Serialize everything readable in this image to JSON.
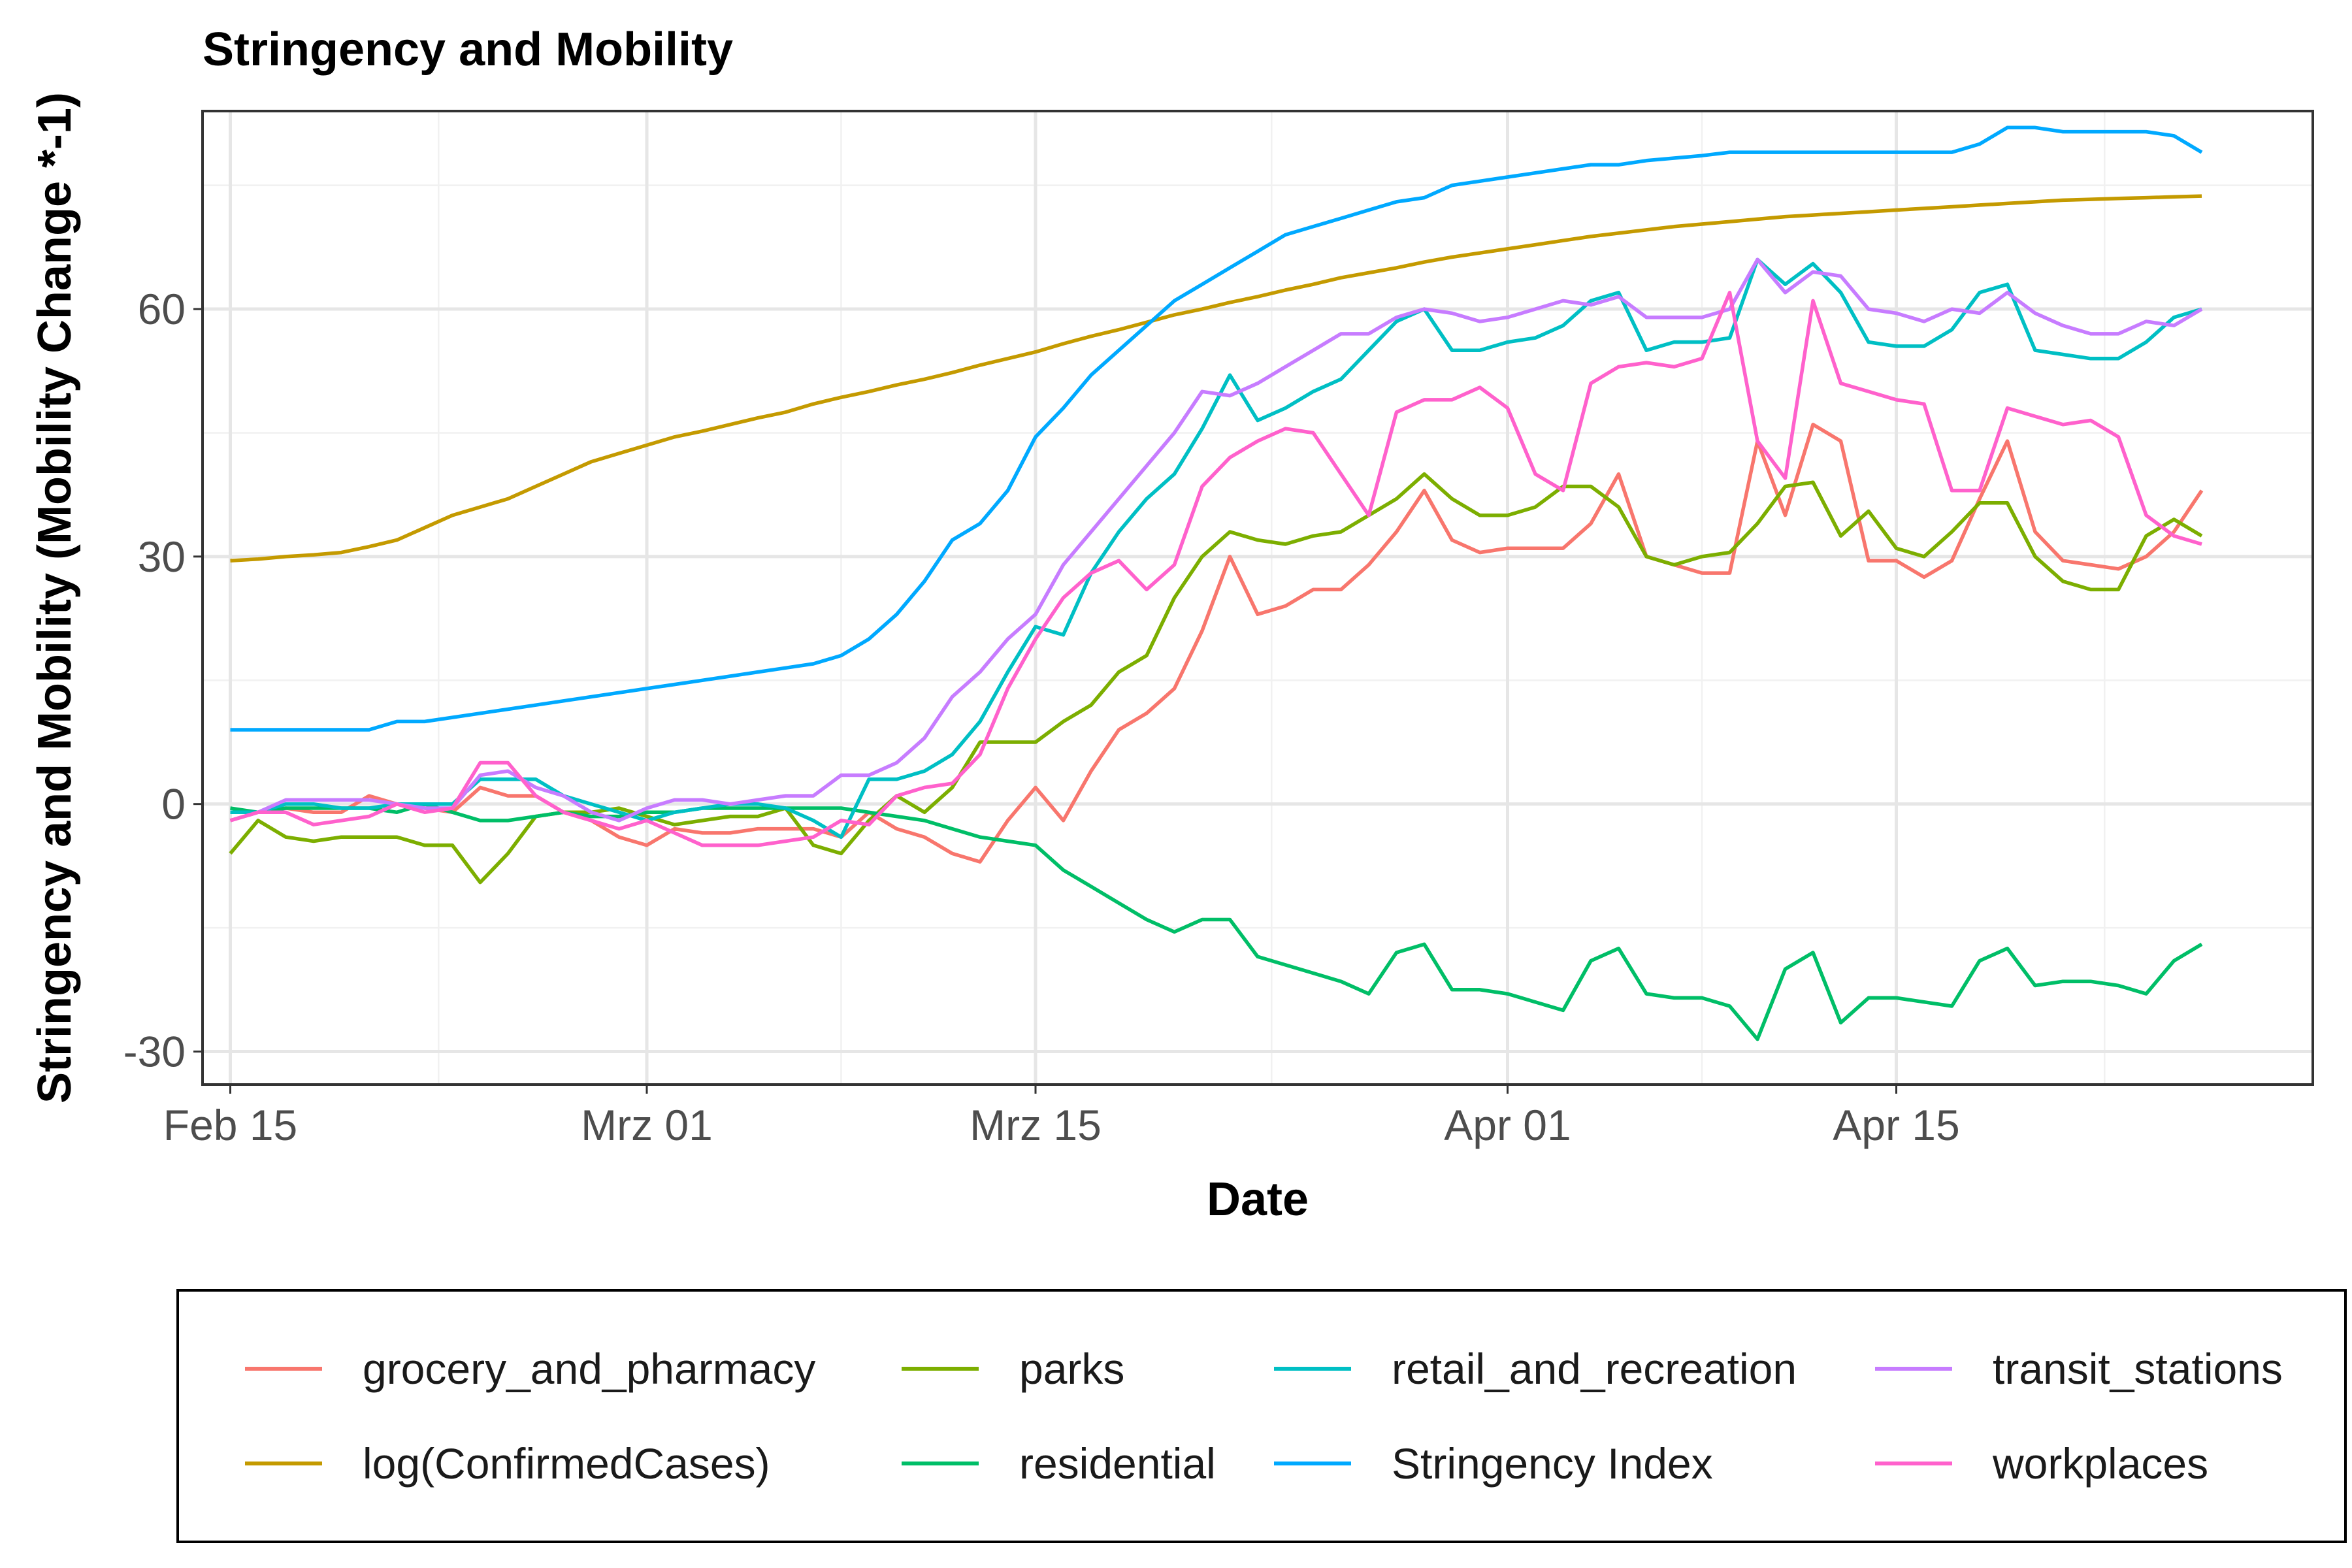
{
  "chart_data": {
    "type": "line",
    "title": "Stringency and Mobility",
    "xlabel": "Date",
    "ylabel": "Stringency and Mobility (Mobility Change *-1)",
    "x_start": "2020-02-15",
    "x_end": "2020-04-27",
    "xlim": [
      "2020-02-14",
      "2020-04-30"
    ],
    "ylim": [
      -34,
      84
    ],
    "x_ticks": [
      {
        "date": "2020-02-15",
        "label": "Feb 15"
      },
      {
        "date": "2020-03-01",
        "label": "Mrz 01"
      },
      {
        "date": "2020-03-15",
        "label": "Mrz 15"
      },
      {
        "date": "2020-04-01",
        "label": "Apr 01"
      },
      {
        "date": "2020-04-15",
        "label": "Apr 15"
      }
    ],
    "y_ticks": [
      -30,
      0,
      30,
      60
    ],
    "grid": true,
    "legend_position": "bottom",
    "series": [
      {
        "name": "grocery_and_pharmacy",
        "color": "#F8766D",
        "values": [
          -2,
          -1,
          -0.5,
          -1,
          -1,
          1,
          0,
          -0.5,
          -1,
          2,
          1,
          1,
          -1,
          -2,
          -4,
          -5,
          -3,
          -3.5,
          -3.5,
          -3,
          -3,
          -3,
          -4,
          -1,
          -3,
          -4,
          -6,
          -7,
          -2,
          2,
          -2,
          4,
          9,
          11,
          14,
          21,
          30,
          23,
          24,
          26,
          26,
          29,
          33,
          38,
          32,
          30.5,
          31,
          31,
          31,
          34,
          40,
          30,
          29,
          28,
          28,
          44,
          35,
          46,
          44,
          29.5,
          29.5,
          27.5,
          29.5,
          37,
          44,
          33,
          29.5,
          29,
          28.5,
          30,
          33,
          38
        ]
      },
      {
        "name": "log(ConfirmedCases)",
        "color": "#C49A00",
        "values": [
          29.5,
          29.7,
          30,
          30.2,
          30.5,
          31.2,
          32,
          33.5,
          35,
          36,
          37,
          38.5,
          40,
          41.5,
          42.5,
          43.5,
          44.5,
          45.2,
          46,
          46.8,
          47.5,
          48.5,
          49.3,
          50,
          50.8,
          51.5,
          52.3,
          53.2,
          54,
          54.8,
          55.8,
          56.7,
          57.5,
          58.4,
          59.3,
          60,
          60.8,
          61.5,
          62.3,
          63,
          63.8,
          64.4,
          65,
          65.7,
          66.3,
          66.8,
          67.3,
          67.8,
          68.3,
          68.8,
          69.2,
          69.6,
          70,
          70.3,
          70.6,
          70.9,
          71.2,
          71.4,
          71.6,
          71.8,
          72,
          72.2,
          72.4,
          72.6,
          72.8,
          73,
          73.2,
          73.3,
          73.4,
          73.5,
          73.6,
          73.7
        ]
      },
      {
        "name": "parks",
        "color": "#7CAE00",
        "values": [
          -6,
          -2,
          -4,
          -4.5,
          -4,
          -4,
          -4,
          -5,
          -5,
          -9.5,
          -6,
          -1.5,
          -1,
          -1,
          -0.5,
          -1.5,
          -2.5,
          -2,
          -1.5,
          -1.5,
          -0.5,
          -5,
          -6,
          -2,
          1,
          -1,
          2,
          7.5,
          7.5,
          7.5,
          10,
          12,
          16,
          18,
          25,
          30,
          33,
          32,
          31.5,
          32.5,
          33,
          35,
          37,
          40,
          37,
          35,
          35,
          36,
          38.5,
          38.5,
          36,
          30,
          29,
          30,
          30.5,
          34,
          38.5,
          39,
          32.5,
          35.5,
          31,
          30,
          33,
          36.5,
          36.5,
          30,
          27,
          26,
          26,
          32.5,
          34.5,
          32.5
        ]
      },
      {
        "name": "residential",
        "color": "#00BE67",
        "values": [
          -0.5,
          -1,
          -0.5,
          -0.5,
          -0.5,
          -0.5,
          -1,
          0,
          -1,
          -2,
          -2,
          -1.5,
          -1,
          -1.5,
          -1.5,
          -1,
          -1,
          -0.5,
          -0.5,
          -0.5,
          -0.5,
          -0.5,
          -0.5,
          -1,
          -1.5,
          -2,
          -3,
          -4,
          -4.5,
          -5,
          -8,
          -10,
          -12,
          -14,
          -15.5,
          -14,
          -14,
          -18.5,
          -19.5,
          -20.5,
          -21.5,
          -23,
          -18,
          -17,
          -22.5,
          -22.5,
          -23,
          -24,
          -25,
          -19,
          -17.5,
          -23,
          -23.5,
          -23.5,
          -24.5,
          -28.5,
          -20,
          -18,
          -26.5,
          -23.5,
          -23.5,
          -24,
          -24.5,
          -19,
          -17.5,
          -22,
          -21.5,
          -21.5,
          -22,
          -23,
          -19,
          -17
        ]
      },
      {
        "name": "retail_and_recreation",
        "color": "#00BFC4",
        "values": [
          -1,
          -1,
          0,
          0,
          -0.5,
          -0.5,
          0,
          0,
          0,
          3,
          3,
          3,
          1,
          0,
          -1,
          -2,
          -1,
          -0.5,
          0,
          0,
          -0.5,
          -2,
          -4,
          3,
          3,
          4,
          6,
          10,
          16,
          21.5,
          20.5,
          28,
          33,
          37,
          40,
          45.5,
          52,
          46.5,
          48,
          50,
          51.5,
          55,
          58.5,
          60,
          55,
          55,
          56,
          56.5,
          58,
          61,
          62,
          55,
          56,
          56,
          56.5,
          66,
          63,
          65.5,
          62,
          56,
          55.5,
          55.5,
          57.5,
          62,
          63,
          55,
          54.5,
          54,
          54,
          56,
          59,
          60
        ]
      },
      {
        "name": "Stringency Index",
        "color": "#00A9FF",
        "values": [
          9,
          9,
          9,
          9,
          9,
          9,
          10,
          10,
          10.5,
          11,
          11.5,
          12,
          12.5,
          13,
          13.5,
          14,
          14.5,
          15,
          15.5,
          16,
          16.5,
          17,
          18,
          20,
          23,
          27,
          32,
          34,
          38,
          44.5,
          48,
          52,
          55,
          58,
          61,
          63,
          65,
          67,
          69,
          70,
          71,
          72,
          73,
          73.5,
          75,
          75.5,
          76,
          76.5,
          77,
          77.5,
          77.5,
          78,
          78.3,
          78.6,
          79,
          79,
          79,
          79,
          79,
          79,
          79,
          79,
          79,
          80,
          82,
          82,
          81.5,
          81.5,
          81.5,
          81.5,
          81,
          79
        ]
      },
      {
        "name": "transit_stations",
        "color": "#C77CFF",
        "values": [
          -2,
          -1,
          0.5,
          0.5,
          0.5,
          0.5,
          0,
          -0.5,
          -0.5,
          3.5,
          4,
          2,
          1,
          -1,
          -2,
          -0.5,
          0.5,
          0.5,
          0,
          0.5,
          1,
          1,
          3.5,
          3.5,
          5,
          8,
          13,
          16,
          20,
          23,
          29,
          33,
          37,
          41,
          45,
          50,
          49.5,
          51,
          53,
          55,
          57,
          57,
          59,
          60,
          59.5,
          58.5,
          59,
          60,
          61,
          60.5,
          61.5,
          59,
          59,
          59,
          60,
          66,
          62,
          64.5,
          64,
          60,
          59.5,
          58.5,
          60,
          59.5,
          62,
          59.5,
          58,
          57,
          57,
          58.5,
          58,
          60
        ]
      },
      {
        "name": "workplaces",
        "color": "#FF61CC",
        "values": [
          -2,
          -1,
          -1,
          -2.5,
          -2,
          -1.5,
          0,
          -1,
          -0.5,
          5,
          5,
          1,
          -1,
          -2,
          -3,
          -2,
          -3.5,
          -5,
          -5,
          -5,
          -4.5,
          -4,
          -2,
          -2.5,
          1,
          2,
          2.5,
          6,
          14,
          20,
          25,
          28,
          29.5,
          26,
          29,
          38.5,
          42,
          44,
          45.5,
          45,
          40,
          35,
          47.5,
          49,
          49,
          50.5,
          48,
          40,
          38,
          51,
          53,
          53.5,
          53,
          54,
          62,
          44,
          39.5,
          61,
          51,
          50,
          49,
          48.5,
          38,
          38,
          48,
          47,
          46,
          46.5,
          44.5,
          35,
          32.5,
          31.5
        ]
      }
    ]
  }
}
